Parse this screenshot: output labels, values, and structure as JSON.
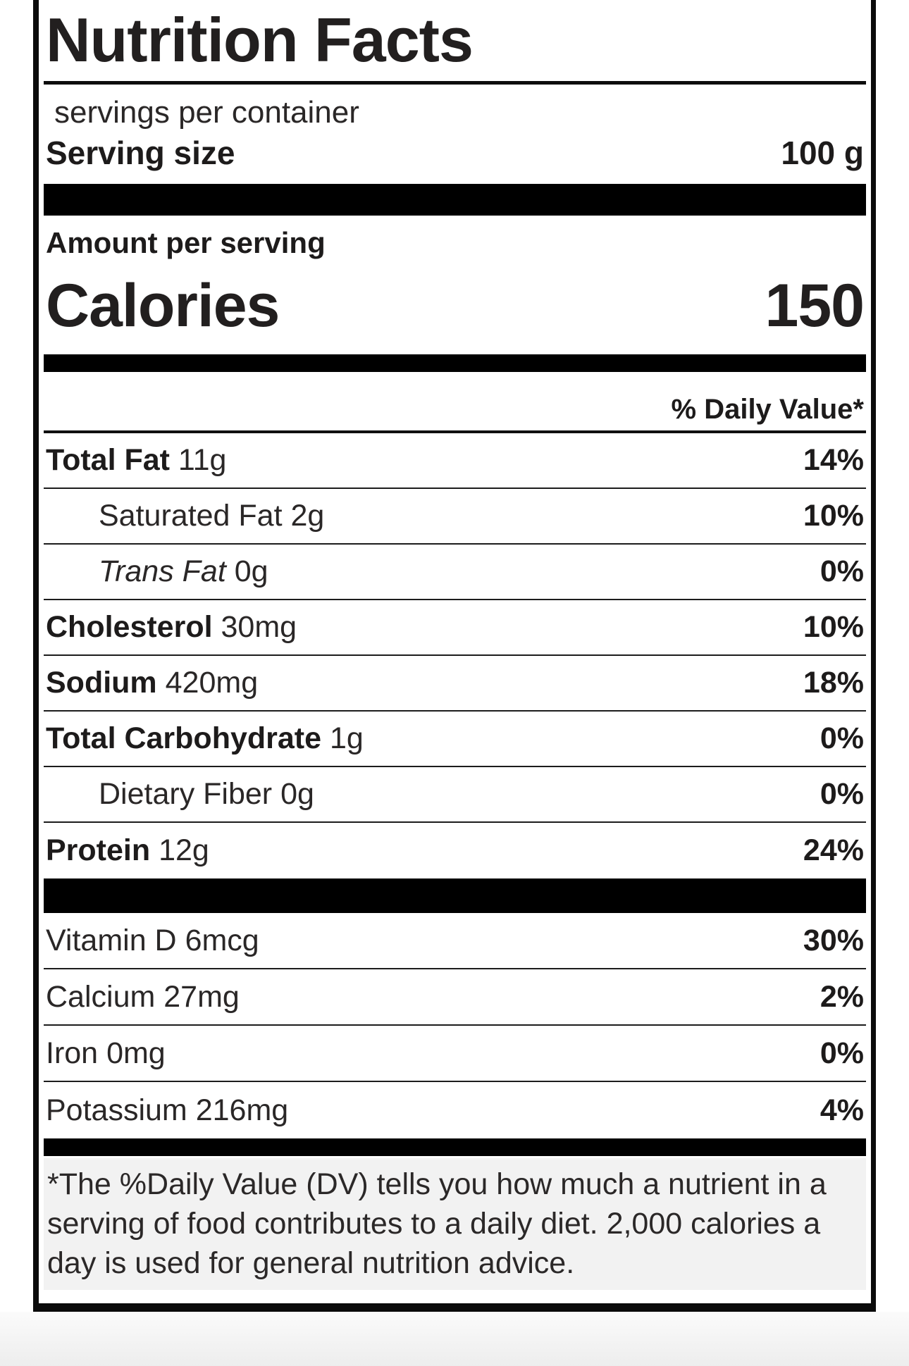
{
  "label": {
    "title": "Nutrition Facts",
    "servings_per_container": "servings per container",
    "serving_size": {
      "label": "Serving size",
      "value": "100 g"
    },
    "amount_per_serving": "Amount per serving",
    "calories": {
      "label": "Calories",
      "value": "150"
    },
    "daily_value_header": "% Daily Value*",
    "nutrients": [
      {
        "name": "Total Fat",
        "amount": "11g",
        "dv": "14%",
        "bold": true,
        "indent": false,
        "italic": false
      },
      {
        "name": "Saturated Fat",
        "amount": "2g",
        "dv": "10%",
        "bold": false,
        "indent": true,
        "italic": false
      },
      {
        "name": "Trans Fat",
        "amount": "0g",
        "dv": "0%",
        "bold": false,
        "indent": true,
        "italic": true
      },
      {
        "name": "Cholesterol",
        "amount": "30mg",
        "dv": "10%",
        "bold": true,
        "indent": false,
        "italic": false
      },
      {
        "name": "Sodium",
        "amount": "420mg",
        "dv": "18%",
        "bold": true,
        "indent": false,
        "italic": false
      },
      {
        "name": "Total Carbohydrate",
        "amount": "1g",
        "dv": "0%",
        "bold": true,
        "indent": false,
        "italic": false
      },
      {
        "name": "Dietary Fiber",
        "amount": "0g",
        "dv": "0%",
        "bold": false,
        "indent": true,
        "italic": false
      },
      {
        "name": "Protein",
        "amount": "12g",
        "dv": "24%",
        "bold": true,
        "indent": false,
        "italic": false
      }
    ],
    "micronutrients": [
      {
        "name": "Vitamin D",
        "amount": "6mcg",
        "dv": "30%"
      },
      {
        "name": "Calcium",
        "amount": "27mg",
        "dv": "2%"
      },
      {
        "name": "Iron",
        "amount": "0mg",
        "dv": "0%"
      },
      {
        "name": "Potassium",
        "amount": "216mg",
        "dv": "4%"
      }
    ],
    "footnote": "*The %Daily Value (DV) tells you how much a nutrient in a serving of food contributes to a daily diet. 2,000 calories a day is used for general nutrition advice."
  },
  "colors": {
    "bar": "#000000",
    "text": "#242121",
    "bold_text": "#1d1b1b",
    "footnote_background": "#f2f2f2",
    "page_below_background": "#ededed"
  }
}
